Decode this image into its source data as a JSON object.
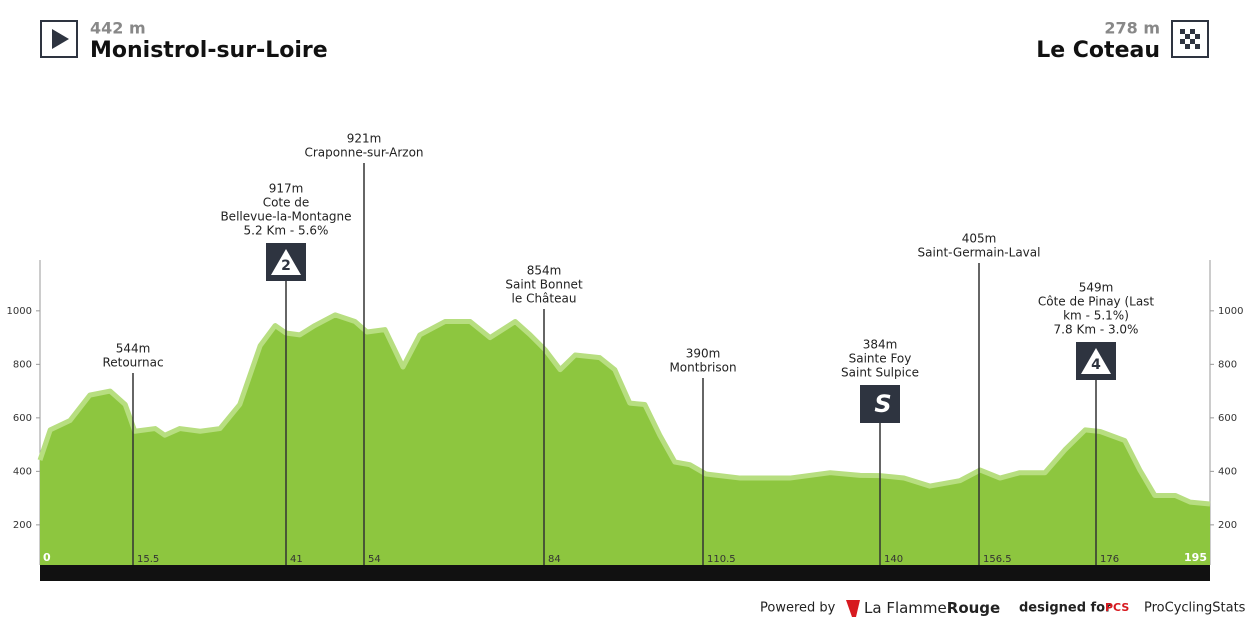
{
  "chart_data": {
    "type": "area",
    "start": {
      "altitude": "442 m",
      "name": "Monistrol-sur-Loire"
    },
    "finish": {
      "altitude": "278 m",
      "name": "Le Coteau"
    },
    "xlim": [
      0,
      195
    ],
    "ylim": [
      50,
      1190
    ],
    "yticks": [
      200,
      400,
      600,
      800,
      1000
    ],
    "series": [
      {
        "color": "#8dc63f",
        "x": [
          0,
          1.7,
          5,
          8.3,
          11.7,
          14.2,
          15.8,
          19.2,
          20.8,
          23.3,
          26.7,
          30,
          33.3,
          36.7,
          39.2,
          41,
          43.3,
          45.8,
          49.2,
          52.5,
          54.5,
          57.5,
          60.5,
          63.3,
          67.5,
          71.7,
          75,
          79.2,
          81.7,
          84.2,
          86.7,
          89.2,
          93.3,
          95.8,
          98.3,
          100.8,
          103.3,
          105.8,
          108.3,
          111,
          116.7,
          125,
          131.7,
          136.7,
          140,
          144,
          148.3,
          153.3,
          156.7,
          160,
          163.3,
          167.5,
          170.8,
          174.2,
          176.7,
          180.8,
          183.3,
          185.8,
          189.2,
          191.7,
          195
        ],
        "values": [
          442,
          555,
          590,
          685,
          700,
          650,
          550,
          560,
          535,
          560,
          550,
          560,
          650,
          870,
          945,
          917,
          910,
          945,
          985,
          960,
          921,
          930,
          790,
          910,
          960,
          960,
          900,
          960,
          910,
          854,
          780,
          835,
          825,
          780,
          655,
          650,
          535,
          435,
          425,
          390,
          375,
          375,
          395,
          385,
          384,
          375,
          345,
          365,
          405,
          375,
          395,
          395,
          480,
          555,
          549,
          515,
          405,
          310,
          310,
          285,
          278
        ]
      }
    ],
    "waypoints": [
      {
        "km": 15.5,
        "lines": [
          "544m",
          "Retournac"
        ]
      },
      {
        "km": 41,
        "lines": [
          "917m",
          "Cote de",
          "Bellevue-la-Montagne",
          "5.2 Km - 5.6%"
        ],
        "icon": "2"
      },
      {
        "km": 54,
        "lines": [
          "921m",
          "Craponne-sur-Arzon"
        ]
      },
      {
        "km": 84,
        "lines": [
          "854m",
          "Saint Bonnet",
          "le Château"
        ]
      },
      {
        "km": 110.5,
        "lines": [
          "390m",
          "Montbrison"
        ]
      },
      {
        "km": 140,
        "lines": [
          "384m",
          "Sainte Foy",
          "Saint Sulpice"
        ],
        "icon": "S"
      },
      {
        "km": 156.5,
        "lines": [
          "405m",
          "Saint-Germain-Laval"
        ]
      },
      {
        "km": 176,
        "lines": [
          "549m",
          "Côte de Pinay (Last",
          "km - 5.1%)",
          "7.8 Km - 3.0%"
        ],
        "icon": "4"
      }
    ],
    "footer": {
      "powered": "Powered by",
      "brand1": "La Flamme",
      "brand2": "Rouge",
      "designed": "designed for",
      "pcs": "PCS",
      "site": "ProCyclingStats"
    }
  }
}
